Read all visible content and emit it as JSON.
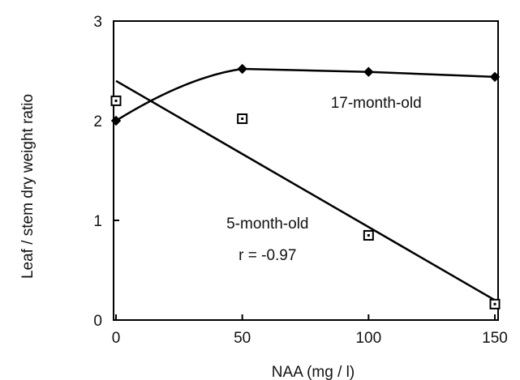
{
  "chart_data": {
    "type": "scatter",
    "title": "",
    "xlabel": "NAA (mg / l)",
    "ylabel": "Leaf / stem dry weight ratio",
    "xlim": [
      0,
      150
    ],
    "ylim": [
      0,
      3
    ],
    "xticks": [
      0,
      50,
      100,
      150
    ],
    "yticks": [
      0,
      1,
      2,
      3
    ],
    "grid": false,
    "legend": "none",
    "series": [
      {
        "marker": "filled-diamond",
        "connection": "smooth-curve",
        "color": "#000000",
        "x": [
          0,
          50,
          100,
          150
        ],
        "y": [
          2.0,
          2.52,
          2.49,
          2.44
        ]
      },
      {
        "marker": "open-square",
        "connection": "regression-line",
        "color": "#000000",
        "x": [
          0,
          50,
          100,
          150
        ],
        "y": [
          2.2,
          2.02,
          0.85,
          0.16
        ],
        "fit": {
          "x": [
            0,
            150
          ],
          "y": [
            2.4,
            0.2
          ]
        }
      }
    ],
    "annotations": [
      {
        "text": "17-month-old",
        "x": 103,
        "y": 2.13
      },
      {
        "text": "5-month-old",
        "x": 60,
        "y": 0.92
      },
      {
        "text": "r = -0.97",
        "x": 60,
        "y": 0.6
      }
    ]
  }
}
